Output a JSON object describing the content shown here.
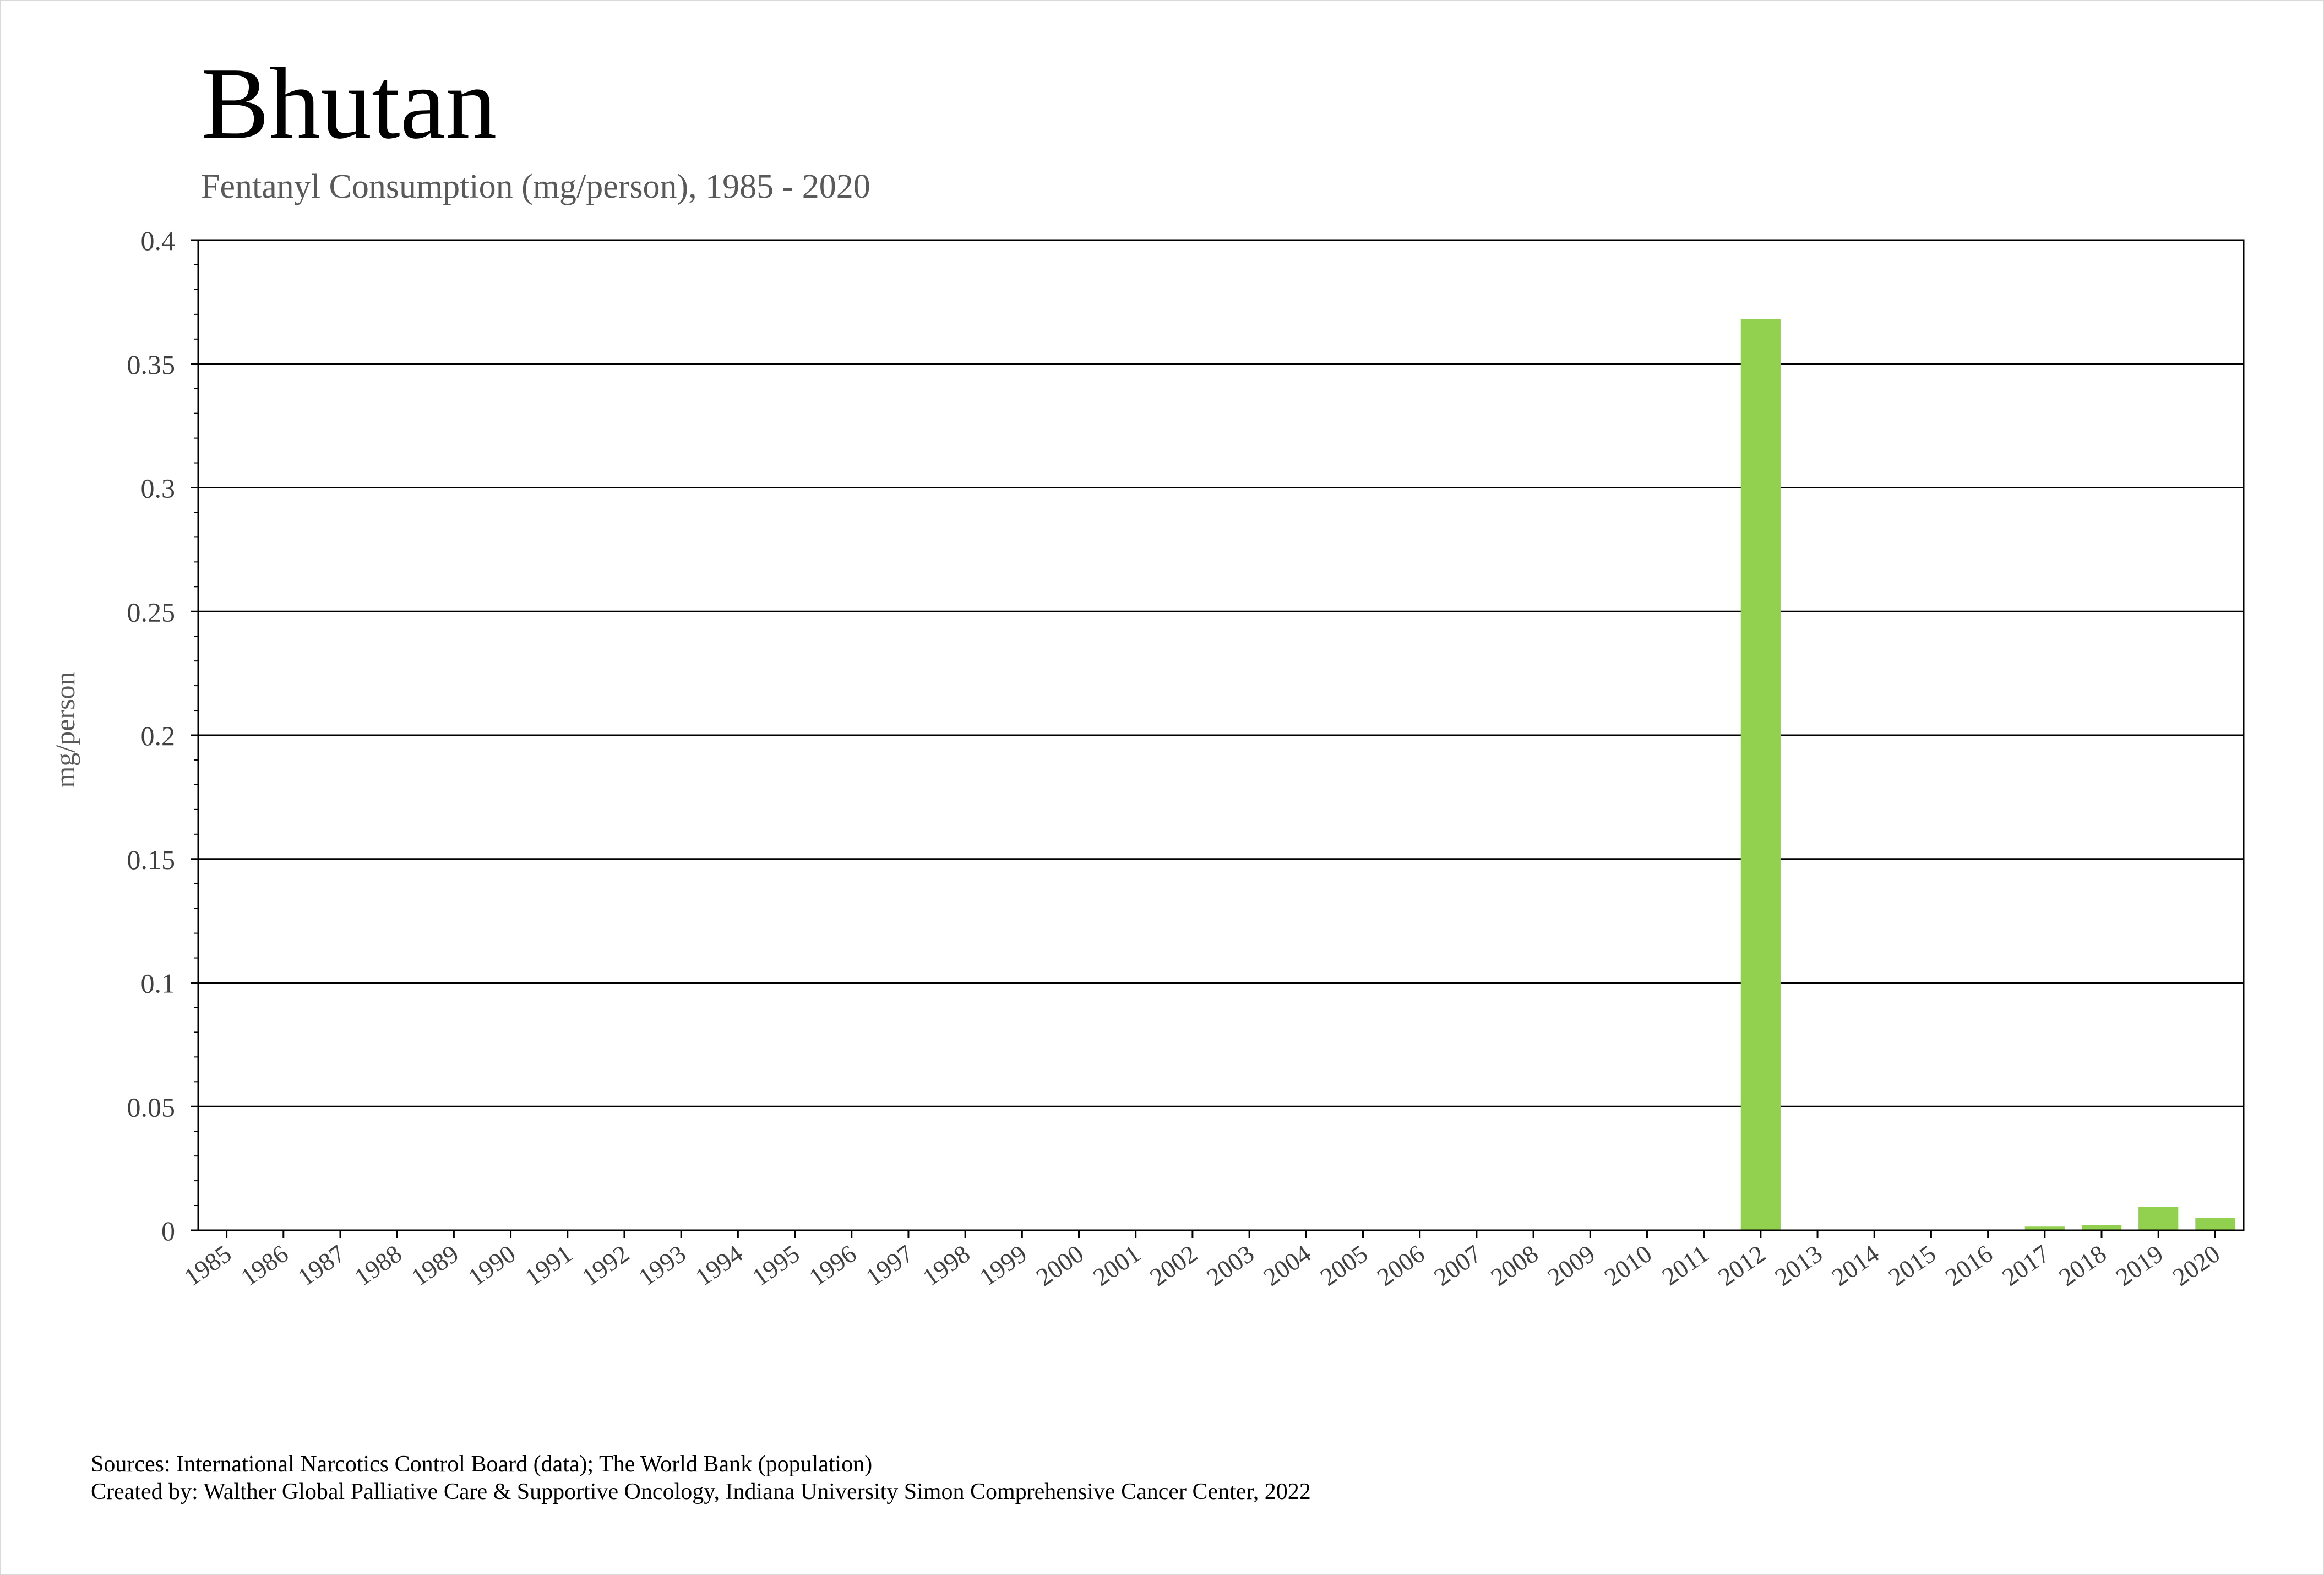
{
  "page": {
    "title": "Bhutan",
    "subtitle": "Fentanyl Consumption (mg/person), 1985 - 2020",
    "footer_sources": "Sources: International Narcotics Control Board (data); The World Bank (population)",
    "footer_created": "Created by: Walther Global Palliative Care & Supportive Oncology, Indiana University Simon Comprehensive Cancer Center, 2022"
  },
  "chart_data": {
    "type": "bar",
    "title": "Bhutan",
    "subtitle": "Fentanyl Consumption (mg/person), 1985 - 2020",
    "xlabel": "",
    "ylabel": "mg/person",
    "ylim": [
      0,
      0.4
    ],
    "yticks": [
      0,
      0.05,
      0.1,
      0.15,
      0.2,
      0.25,
      0.3,
      0.35,
      0.4
    ],
    "ytick_labels": [
      "0",
      "0.05",
      "0.1",
      "0.15",
      "0.2",
      "0.25",
      "0.3",
      "0.35",
      "0.4"
    ],
    "grid": true,
    "legend": "none",
    "bar_color": "#92d050",
    "categories": [
      "1985",
      "1986",
      "1987",
      "1988",
      "1989",
      "1990",
      "1991",
      "1992",
      "1993",
      "1994",
      "1995",
      "1996",
      "1997",
      "1998",
      "1999",
      "2000",
      "2001",
      "2002",
      "2003",
      "2004",
      "2005",
      "2006",
      "2007",
      "2008",
      "2009",
      "2010",
      "2011",
      "2012",
      "2013",
      "2014",
      "2015",
      "2016",
      "2017",
      "2018",
      "2019",
      "2020"
    ],
    "values": [
      0,
      0,
      0,
      0,
      0,
      0,
      0,
      0,
      0,
      0,
      0,
      0,
      0,
      0,
      0,
      0,
      0,
      0,
      0,
      0.0003,
      0,
      0,
      0.0003,
      0,
      0,
      0.0003,
      0,
      0.368,
      0,
      0,
      0,
      0,
      0.0015,
      0.002,
      0.0095,
      0.005
    ]
  }
}
